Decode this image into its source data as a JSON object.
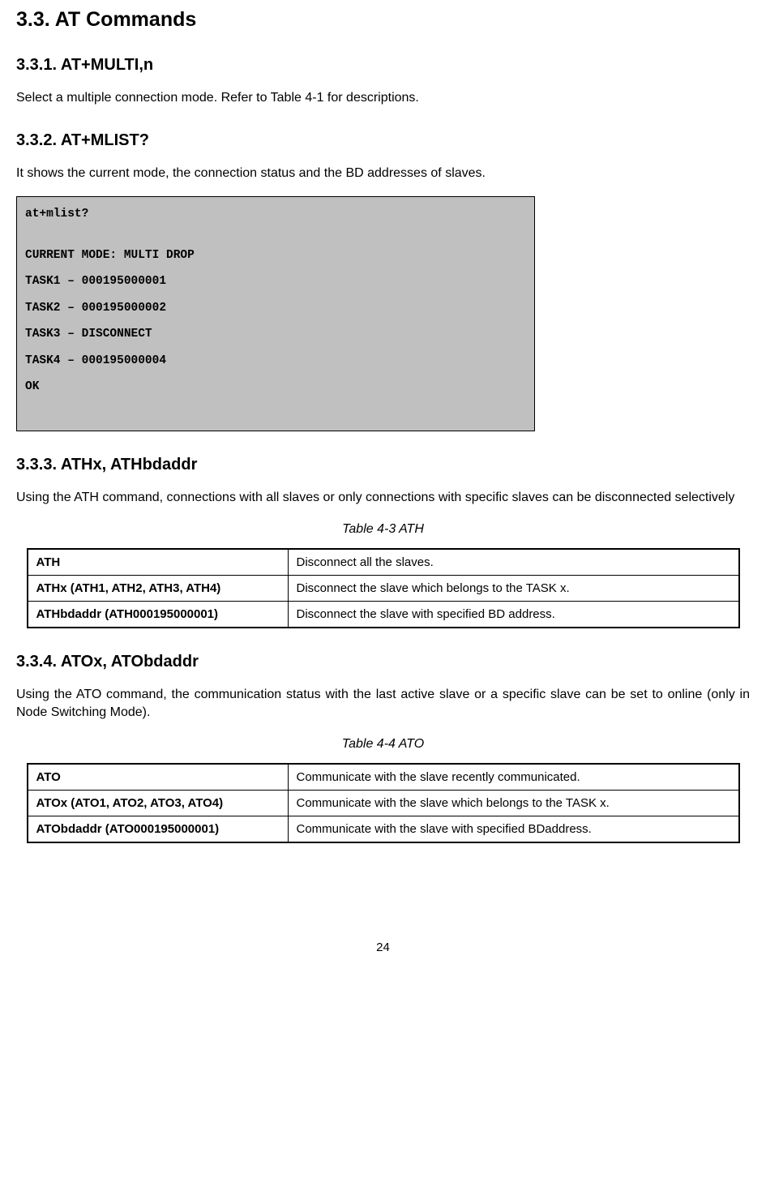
{
  "s33": {
    "title": "3.3. AT Commands",
    "s331": {
      "title": "3.3.1. AT+MULTI,n",
      "text": "Select a multiple connection mode. Refer to Table 4-1 for descriptions."
    },
    "s332": {
      "title": "3.3.2. AT+MLIST?",
      "text": "It shows the current mode, the connection status and the BD addresses of slaves.",
      "code": {
        "l1": "at+mlist?",
        "l2": "CURRENT MODE: MULTI DROP",
        "l3": "TASK1 – 000195000001",
        "l4": "TASK2 – 000195000002",
        "l5": "TASK3 – DISCONNECT",
        "l6": "TASK4 – 000195000004",
        "l7": "OK"
      }
    },
    "s333": {
      "title": "3.3.3. ATHx, ATHbdaddr",
      "text": "Using the ATH command, connections with all slaves or only connections with specific slaves can be disconnected selectively",
      "table_caption": "Table 4-3 ATH",
      "table": {
        "r1c1": "ATH",
        "r1c2": "Disconnect all the slaves.",
        "r2c1": "ATHx (ATH1, ATH2, ATH3, ATH4)",
        "r2c2": "Disconnect the slave which belongs to the TASK x.",
        "r3c1": "ATHbdaddr (ATH000195000001)",
        "r3c2": "Disconnect the slave with specified BD address."
      }
    },
    "s334": {
      "title": "3.3.4. ATOx, ATObdaddr",
      "text": "Using the ATO command, the communication status with the last active slave or a specific slave can be set to online (only in Node Switching Mode).",
      "table_caption": "Table 4-4 ATO",
      "table": {
        "r1c1": "ATO",
        "r1c2": "Communicate with the slave recently communicated.",
        "r2c1": "ATOx (ATO1, ATO2, ATO3, ATO4)",
        "r2c2": "Communicate with the slave which belongs to the TASK x.",
        "r3c1": "ATObdaddr (ATO000195000001)",
        "r3c2": "Communicate with the slave with specified BDaddress."
      }
    }
  },
  "page_number": "24"
}
